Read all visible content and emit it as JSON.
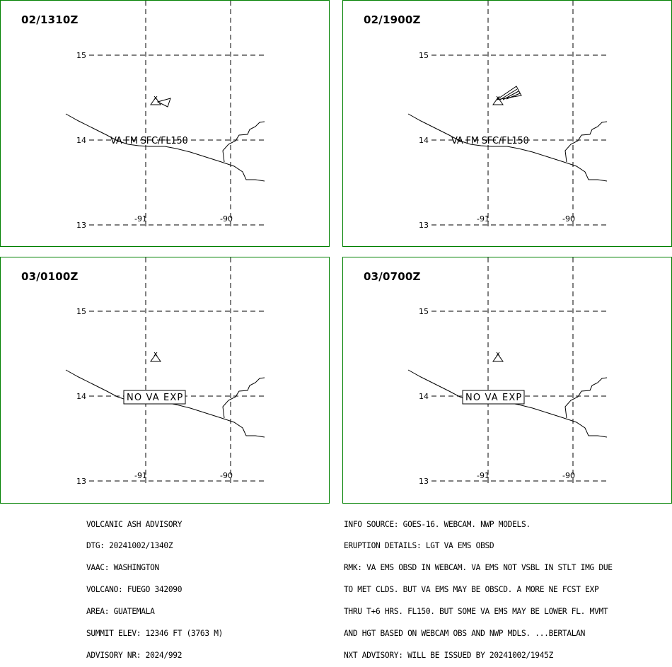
{
  "panels": [
    {
      "id": "p1",
      "time": "02/1310Z",
      "label": "VA FM SFC/FL150",
      "boxed": false,
      "ash_cloud": "small-triangle"
    },
    {
      "id": "p2",
      "time": "02/1900Z",
      "label": "VA FM SFC/FL150",
      "boxed": false,
      "ash_cloud": "elongated-ne"
    },
    {
      "id": "p3",
      "time": "03/0100Z",
      "label": "NO VA EXP",
      "boxed": true,
      "ash_cloud": "none"
    },
    {
      "id": "p4",
      "time": "03/0700Z",
      "label": "NO VA EXP",
      "boxed": true,
      "ash_cloud": "none"
    }
  ],
  "grid": {
    "lat_labels": [
      "15",
      "14",
      "13"
    ],
    "lon_labels": [
      "-91",
      "-90"
    ]
  },
  "icons": {
    "volcano": "volcano-icon",
    "ash": "ash-polygon"
  },
  "colors": {
    "border": "#008000",
    "line": "#000000",
    "background": "#ffffff"
  },
  "advisory_left": [
    "VOLCANIC ASH ADVISORY",
    "DTG: 20241002/1340Z",
    "VAAC: WASHINGTON",
    "VOLCANO: FUEGO 342090",
    "AREA: GUATEMALA",
    "SUMMIT ELEV: 12346 FT (3763 M)",
    "ADVISORY NR: 2024/992"
  ],
  "advisory_right": [
    "INFO SOURCE: GOES-16. WEBCAM. NWP MODELS.",
    "ERUPTION DETAILS: LGT VA EMS OBSD",
    "RMK: VA EMS OBSD IN WEBCAM. VA EMS NOT VSBL IN STLT IMG DUE",
    "TO MET CLDS. BUT VA EMS MAY BE OBSCD. A MORE NE FCST EXP",
    "THRU T+6 HRS. FL150. BUT SOME VA EMS MAY BE LOWER FL. MVMT",
    "AND HGT BASED ON WEBCAM OBS AND NWP MDLS. ...BERTALAN",
    "NXT ADVISORY: WILL BE ISSUED BY 20241002/1945Z"
  ]
}
